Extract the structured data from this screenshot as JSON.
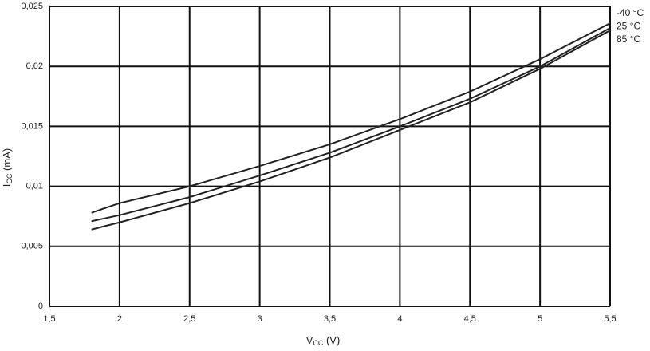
{
  "chart_data": {
    "type": "line",
    "x_label": [
      "V",
      "CC",
      " (V)"
    ],
    "y_label": [
      "I",
      "CC",
      " (mA)"
    ],
    "x": [
      1.8,
      2.0,
      2.5,
      3.0,
      3.5,
      4.0,
      4.5,
      5.0,
      5.5
    ],
    "series": [
      {
        "name": "-40 °C",
        "color": "#222222",
        "values": [
          0.0078,
          0.0086,
          0.01,
          0.0117,
          0.0135,
          0.0156,
          0.0179,
          0.0206,
          0.0236
        ]
      },
      {
        "name": "25 °C",
        "color": "#222222",
        "values": [
          0.0071,
          0.0076,
          0.0091,
          0.0109,
          0.0128,
          0.015,
          0.0173,
          0.02,
          0.0232
        ]
      },
      {
        "name": "85 °C",
        "color": "#222222",
        "values": [
          0.0064,
          0.007,
          0.0086,
          0.0104,
          0.0124,
          0.0147,
          0.017,
          0.0198,
          0.023
        ]
      }
    ],
    "xlim": [
      1.5,
      5.5
    ],
    "xticks": [
      {
        "value": 1.5,
        "label": "1,5"
      },
      2,
      {
        "value": 2.5,
        "label": "2,5"
      },
      3,
      {
        "value": 3.5,
        "label": "3,5"
      },
      4,
      {
        "value": 4.5,
        "label": "4,5"
      },
      5,
      {
        "value": 5.5,
        "label": "5,5"
      }
    ],
    "ylim": [
      0,
      0.025
    ],
    "yticks": [
      0,
      {
        "value": 0.005,
        "label": "0,005"
      },
      {
        "value": 0.01,
        "label": "0,01"
      },
      {
        "value": 0.015,
        "label": "0,015"
      },
      {
        "value": 0.02,
        "label": "0,02"
      },
      {
        "value": 0.025,
        "label": "0,025"
      }
    ],
    "grid": true
  }
}
